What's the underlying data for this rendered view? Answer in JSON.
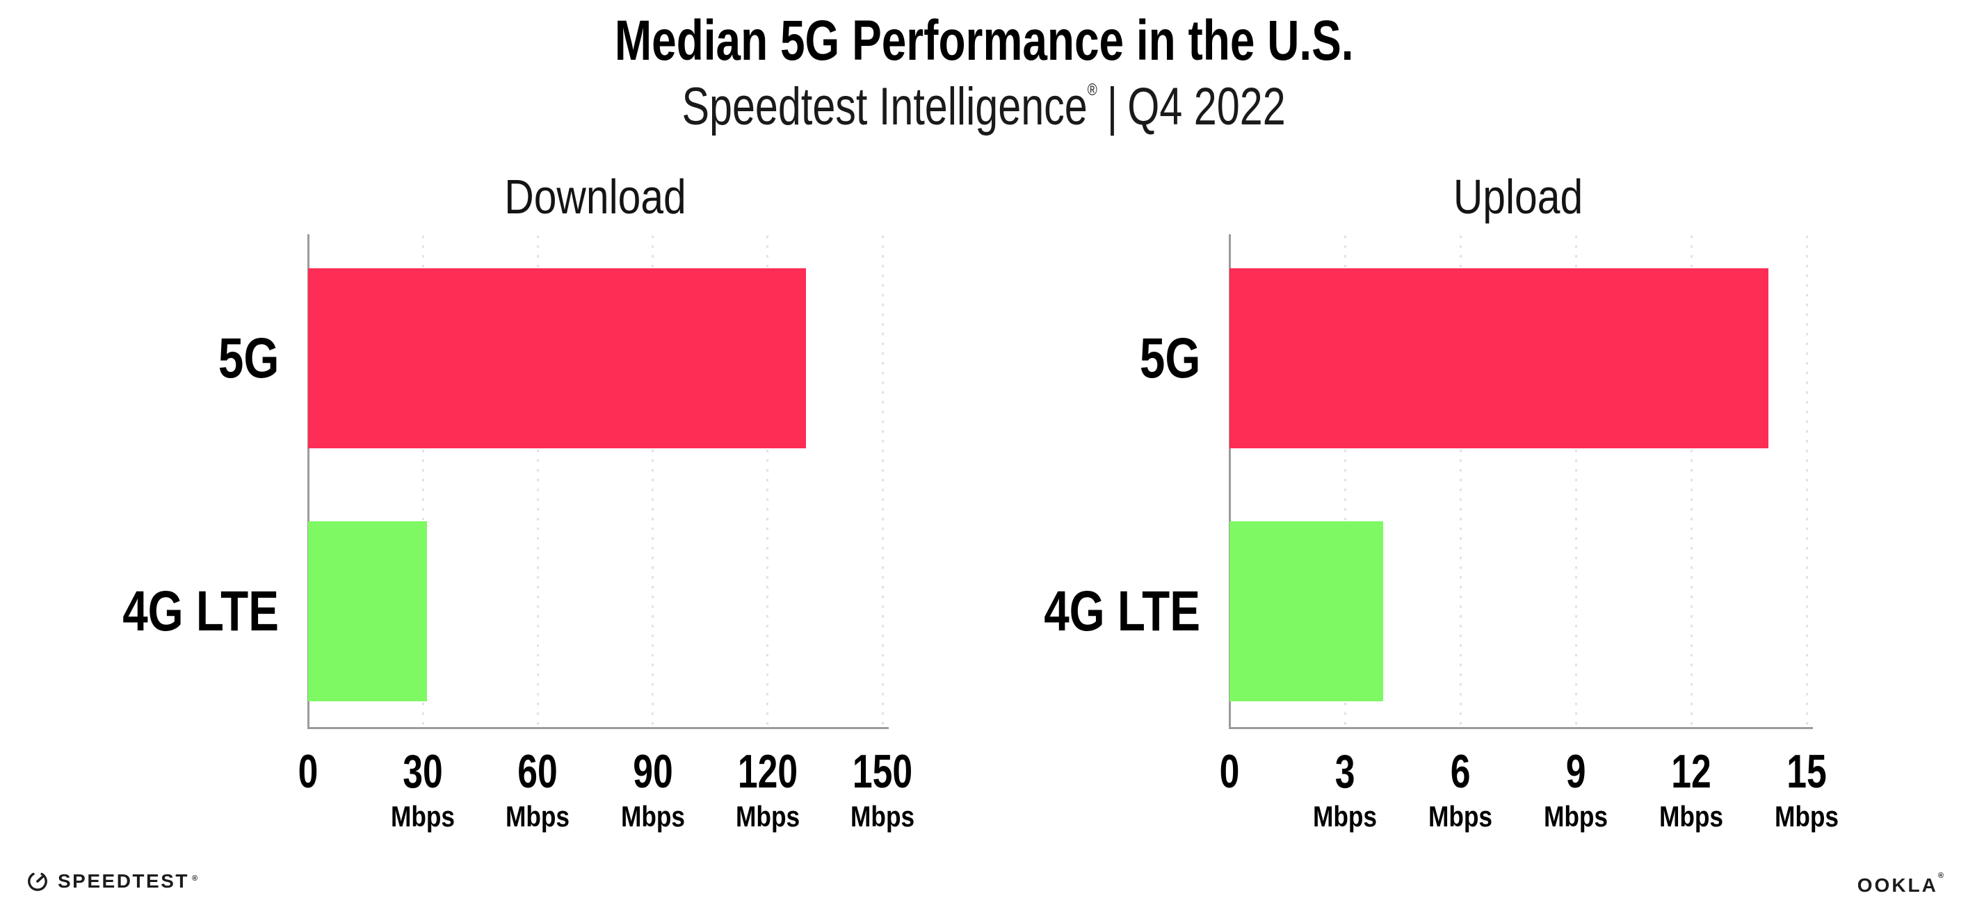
{
  "title": "Median 5G Performance in the U.S.",
  "subtitle": {
    "brand": "Speedtest Intelligence",
    "reg_mark": "®",
    "separator": "|",
    "period": "Q4 2022"
  },
  "footer": {
    "speedtest_label": "SPEEDTEST",
    "speedtest_mark": "®",
    "ookla_label": "OOKLA",
    "ookla_mark": "®"
  },
  "colors": {
    "bar_5g": "#FD2D55",
    "bar_4g_lte": "#7EF964",
    "axis": "#9B9B9B",
    "gridline": "#E0E0EC",
    "text": "#000000"
  },
  "chart_data": [
    {
      "type": "bar",
      "orientation": "horizontal",
      "title": "Download",
      "categories": [
        "5G",
        "4G LTE"
      ],
      "values": [
        130,
        31
      ],
      "unit": "Mbps",
      "xlim": [
        0,
        150
      ],
      "xticks": [
        0,
        30,
        60,
        90,
        120,
        150
      ],
      "tick_unit_label": "Mbps",
      "grid": "vertical-dotted",
      "legend": "none",
      "bar_colors": [
        "#FD2D55",
        "#7EF964"
      ]
    },
    {
      "type": "bar",
      "orientation": "horizontal",
      "title": "Upload",
      "categories": [
        "5G",
        "4G LTE"
      ],
      "values": [
        14,
        4
      ],
      "unit": "Mbps",
      "xlim": [
        0,
        15
      ],
      "xticks": [
        0,
        3,
        6,
        9,
        12,
        15
      ],
      "tick_unit_label": "Mbps",
      "grid": "vertical-dotted",
      "legend": "none",
      "bar_colors": [
        "#FD2D55",
        "#7EF964"
      ]
    }
  ]
}
